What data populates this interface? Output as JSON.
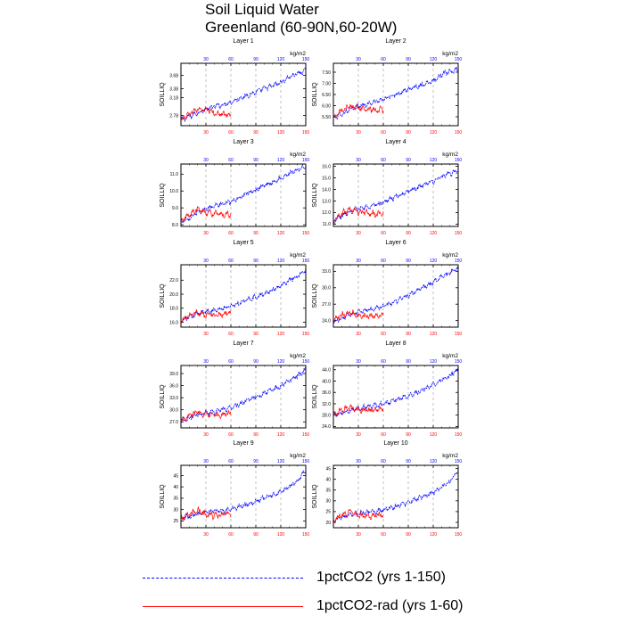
{
  "title_line1": "Soil Liquid Water",
  "title_line2": "Greenland (60-90N,60-20W)",
  "colors": {
    "series1": "#0000ff",
    "series2": "#ff0000",
    "grid": "#9a9a9a",
    "axis": "#000000"
  },
  "legend": [
    {
      "label": "1pctCO2 (yrs 1-150)",
      "color": "#0000ff",
      "style": "dashed"
    },
    {
      "label": "1pctCO2-rad (yrs 1-60)",
      "color": "#ff0000",
      "style": "solid"
    }
  ],
  "chart_data": [
    {
      "type": "line",
      "title": "Layer 1",
      "ylabel": "SOILLIQ",
      "unit": "kg/m2",
      "xlim": [
        0,
        150
      ],
      "x_ticks": [
        30,
        60,
        90,
        120,
        150
      ],
      "ylim": [
        2.55,
        3.95
      ],
      "y_ticks": [
        "2.78",
        "3.18",
        "3.38",
        "3.68"
      ],
      "y_tick_values": [
        2.78,
        3.18,
        3.38,
        3.68
      ],
      "grid": "vertical dashed at x ticks",
      "series": [
        {
          "x": [
            0,
            10,
            20,
            30,
            40,
            50,
            60,
            70,
            80,
            90,
            100,
            110,
            120,
            130,
            140,
            150
          ],
          "y": [
            2.68,
            2.75,
            2.84,
            2.92,
            2.98,
            3.02,
            3.08,
            3.16,
            3.23,
            3.3,
            3.38,
            3.44,
            3.52,
            3.64,
            3.72,
            3.78
          ]
        },
        {
          "x": [
            0,
            10,
            20,
            30,
            40,
            50,
            60
          ],
          "y": [
            2.68,
            2.82,
            2.92,
            2.9,
            2.84,
            2.8,
            2.8
          ]
        }
      ]
    },
    {
      "type": "line",
      "title": "Layer 2",
      "ylabel": "SOILLIQ",
      "unit": "kg/m2",
      "xlim": [
        0,
        150
      ],
      "x_ticks": [
        30,
        60,
        90,
        120,
        150
      ],
      "ylim": [
        5.1,
        7.9
      ],
      "y_ticks": [
        "5.50",
        "6.00",
        "6.50",
        "7.00",
        "7.50"
      ],
      "y_tick_values": [
        5.5,
        6.0,
        6.5,
        7.0,
        7.5
      ],
      "grid": "vertical dashed at x ticks",
      "series": [
        {
          "x": [
            0,
            10,
            20,
            30,
            40,
            50,
            60,
            70,
            80,
            90,
            100,
            110,
            120,
            130,
            140,
            150
          ],
          "y": [
            5.45,
            5.62,
            5.82,
            5.98,
            6.06,
            6.16,
            6.28,
            6.44,
            6.58,
            6.72,
            6.86,
            6.98,
            7.14,
            7.38,
            7.52,
            7.62
          ]
        },
        {
          "x": [
            0,
            10,
            20,
            30,
            40,
            50,
            60
          ],
          "y": [
            5.45,
            5.8,
            6.0,
            5.9,
            5.85,
            5.8,
            5.82
          ]
        }
      ]
    },
    {
      "type": "line",
      "title": "Layer 3",
      "ylabel": "SOILLIQ",
      "unit": "kg/m2",
      "xlim": [
        0,
        150
      ],
      "x_ticks": [
        30,
        60,
        90,
        120,
        150
      ],
      "ylim": [
        7.9,
        11.6
      ],
      "y_ticks": [
        "8.0",
        "9.0",
        "10.0",
        "11.0"
      ],
      "y_tick_values": [
        8.0,
        9.0,
        10.0,
        11.0
      ],
      "grid": "vertical dashed at x ticks",
      "series": [
        {
          "x": [
            0,
            10,
            20,
            30,
            40,
            50,
            60,
            70,
            80,
            90,
            100,
            110,
            120,
            130,
            140,
            150
          ],
          "y": [
            8.2,
            8.42,
            8.7,
            8.95,
            9.1,
            9.22,
            9.4,
            9.62,
            9.85,
            10.05,
            10.3,
            10.52,
            10.75,
            11.05,
            11.25,
            11.45
          ]
        },
        {
          "x": [
            0,
            10,
            20,
            30,
            40,
            50,
            60
          ],
          "y": [
            8.2,
            8.6,
            8.9,
            8.75,
            8.65,
            8.6,
            8.62
          ]
        }
      ]
    },
    {
      "type": "line",
      "title": "Layer 4",
      "ylabel": "SOILLIQ",
      "unit": "kg/m2",
      "xlim": [
        0,
        150
      ],
      "x_ticks": [
        30,
        60,
        90,
        120,
        150
      ],
      "ylim": [
        10.8,
        16.2
      ],
      "y_ticks": [
        "11.0",
        "12.0",
        "13.0",
        "14.0",
        "15.0",
        "16.0"
      ],
      "y_tick_values": [
        11.0,
        12.0,
        13.0,
        14.0,
        15.0,
        16.0
      ],
      "grid": "vertical dashed at x ticks",
      "series": [
        {
          "x": [
            0,
            10,
            20,
            30,
            40,
            50,
            60,
            70,
            80,
            90,
            100,
            110,
            120,
            130,
            140,
            150
          ],
          "y": [
            11.3,
            11.7,
            12.1,
            12.35,
            12.5,
            12.65,
            12.9,
            13.2,
            13.5,
            13.8,
            14.1,
            14.4,
            14.7,
            15.1,
            15.35,
            15.6
          ]
        },
        {
          "x": [
            0,
            10,
            20,
            30,
            40,
            50,
            60
          ],
          "y": [
            11.3,
            11.9,
            12.3,
            12.0,
            11.95,
            11.9,
            11.92
          ]
        }
      ]
    },
    {
      "type": "line",
      "title": "Layer 5",
      "ylabel": "SOILLIQ",
      "unit": "kg/m2",
      "xlim": [
        0,
        150
      ],
      "x_ticks": [
        30,
        60,
        90,
        120,
        150
      ],
      "ylim": [
        15.3,
        24.2
      ],
      "y_ticks": [
        "16.0",
        "18.0",
        "20.0",
        "22.0"
      ],
      "y_tick_values": [
        16.0,
        18.0,
        20.0,
        22.0
      ],
      "grid": "vertical dashed at x ticks",
      "series": [
        {
          "x": [
            0,
            10,
            20,
            30,
            40,
            50,
            60,
            70,
            80,
            90,
            100,
            110,
            120,
            130,
            140,
            150
          ],
          "y": [
            16.2,
            16.7,
            17.2,
            17.5,
            17.7,
            17.95,
            18.3,
            18.75,
            19.2,
            19.6,
            20.1,
            20.6,
            21.2,
            22.0,
            22.6,
            23.4
          ]
        },
        {
          "x": [
            0,
            10,
            20,
            30,
            40,
            50,
            60
          ],
          "y": [
            16.2,
            17.0,
            17.5,
            17.1,
            17.1,
            17.2,
            17.3
          ]
        }
      ]
    },
    {
      "type": "line",
      "title": "Layer 6",
      "ylabel": "SOILLIQ",
      "unit": "kg/m2",
      "xlim": [
        0,
        150
      ],
      "x_ticks": [
        30,
        60,
        90,
        120,
        150
      ],
      "ylim": [
        22.8,
        34.2
      ],
      "y_ticks": [
        "24.0",
        "27.0",
        "30.0",
        "33.0"
      ],
      "y_tick_values": [
        24.0,
        27.0,
        30.0,
        33.0
      ],
      "grid": "vertical dashed at x ticks",
      "series": [
        {
          "x": [
            0,
            10,
            20,
            30,
            40,
            50,
            60,
            70,
            80,
            90,
            100,
            110,
            120,
            130,
            140,
            150
          ],
          "y": [
            23.8,
            24.4,
            25.1,
            25.6,
            25.9,
            26.2,
            26.6,
            27.2,
            27.9,
            28.6,
            29.4,
            30.2,
            31.0,
            32.0,
            32.7,
            33.5
          ]
        },
        {
          "x": [
            0,
            10,
            20,
            30,
            40,
            50,
            60
          ],
          "y": [
            23.8,
            25.0,
            25.6,
            24.9,
            24.8,
            24.9,
            25.0
          ]
        }
      ]
    },
    {
      "type": "line",
      "title": "Layer 7",
      "ylabel": "SOILLIQ",
      "unit": "kg/m2",
      "xlim": [
        0,
        150
      ],
      "x_ticks": [
        30,
        60,
        90,
        120,
        150
      ],
      "ylim": [
        25.5,
        41.0
      ],
      "y_ticks": [
        "27.0",
        "30.0",
        "33.0",
        "36.0",
        "39.0"
      ],
      "y_tick_values": [
        27.0,
        30.0,
        33.0,
        36.0,
        39.0
      ],
      "grid": "vertical dashed at x ticks",
      "series": [
        {
          "x": [
            0,
            10,
            20,
            30,
            40,
            50,
            60,
            70,
            80,
            90,
            100,
            110,
            120,
            130,
            140,
            150
          ],
          "y": [
            27.3,
            28.0,
            28.8,
            29.3,
            29.6,
            30.0,
            30.5,
            31.4,
            32.3,
            33.2,
            34.1,
            35.0,
            35.9,
            37.3,
            38.4,
            40.0
          ]
        },
        {
          "x": [
            0,
            10,
            20,
            30,
            40,
            50,
            60
          ],
          "y": [
            27.3,
            28.7,
            29.5,
            28.6,
            28.6,
            28.8,
            29.0
          ]
        }
      ]
    },
    {
      "type": "line",
      "title": "Layer 8",
      "ylabel": "SOILLIQ",
      "unit": "kg/m2",
      "xlim": [
        0,
        150
      ],
      "x_ticks": [
        30,
        60,
        90,
        120,
        150
      ],
      "ylim": [
        23.5,
        45.5
      ],
      "y_ticks": [
        "24.0",
        "28.0",
        "32.0",
        "36.0",
        "40.0",
        "44.0"
      ],
      "y_tick_values": [
        24.0,
        28.0,
        32.0,
        36.0,
        40.0,
        44.0
      ],
      "grid": "vertical dashed at x ticks",
      "series": [
        {
          "x": [
            0,
            10,
            20,
            30,
            40,
            50,
            60,
            70,
            80,
            90,
            100,
            110,
            120,
            130,
            140,
            150
          ],
          "y": [
            28.0,
            28.8,
            29.8,
            30.5,
            30.9,
            31.3,
            31.9,
            32.8,
            33.8,
            34.9,
            36.0,
            37.3,
            38.6,
            40.5,
            42.0,
            44.0
          ]
        },
        {
          "x": [
            0,
            10,
            20,
            30,
            40,
            50,
            60
          ],
          "y": [
            28.0,
            29.8,
            31.0,
            29.8,
            29.8,
            30.0,
            30.2
          ]
        }
      ]
    },
    {
      "type": "line",
      "title": "Layer 9",
      "ylabel": "SOILLIQ",
      "unit": "kg/m2",
      "xlim": [
        0,
        150
      ],
      "x_ticks": [
        30,
        60,
        90,
        120,
        150
      ],
      "ylim": [
        22.0,
        49.5
      ],
      "y_ticks": [
        "25",
        "30",
        "35",
        "40",
        "45"
      ],
      "y_tick_values": [
        25,
        30,
        35,
        40,
        45
      ],
      "grid": "vertical dashed at x ticks",
      "series": [
        {
          "x": [
            0,
            10,
            20,
            30,
            40,
            50,
            60,
            70,
            80,
            90,
            100,
            110,
            120,
            130,
            140,
            150
          ],
          "y": [
            26.0,
            27.0,
            28.0,
            29.0,
            29.3,
            29.6,
            30.2,
            31.3,
            32.4,
            33.7,
            35.0,
            36.3,
            37.8,
            40.0,
            42.5,
            47.5
          ]
        },
        {
          "x": [
            0,
            10,
            20,
            30,
            40,
            50,
            60
          ],
          "y": [
            26.0,
            27.8,
            29.5,
            27.6,
            27.5,
            27.8,
            28.0
          ]
        }
      ]
    },
    {
      "type": "line",
      "title": "Layer 10",
      "ylabel": "SOILLIQ",
      "unit": "kg/m2",
      "xlim": [
        0,
        150
      ],
      "x_ticks": [
        30,
        60,
        90,
        120,
        150
      ],
      "ylim": [
        17.5,
        46.5
      ],
      "y_ticks": [
        "20",
        "25",
        "30",
        "35",
        "40",
        "45"
      ],
      "y_tick_values": [
        20,
        25,
        30,
        35,
        40,
        45
      ],
      "grid": "vertical dashed at x ticks",
      "series": [
        {
          "x": [
            0,
            10,
            20,
            30,
            40,
            50,
            60,
            70,
            80,
            90,
            100,
            110,
            120,
            130,
            140,
            150
          ],
          "y": [
            21.0,
            22.0,
            23.2,
            24.2,
            24.6,
            25.0,
            25.7,
            26.8,
            28.0,
            29.3,
            30.8,
            32.3,
            33.8,
            36.3,
            39.0,
            44.0
          ]
        },
        {
          "x": [
            0,
            10,
            20,
            30,
            40,
            50,
            60
          ],
          "y": [
            21.0,
            23.2,
            24.8,
            22.8,
            22.8,
            23.0,
            23.2
          ]
        }
      ]
    }
  ]
}
